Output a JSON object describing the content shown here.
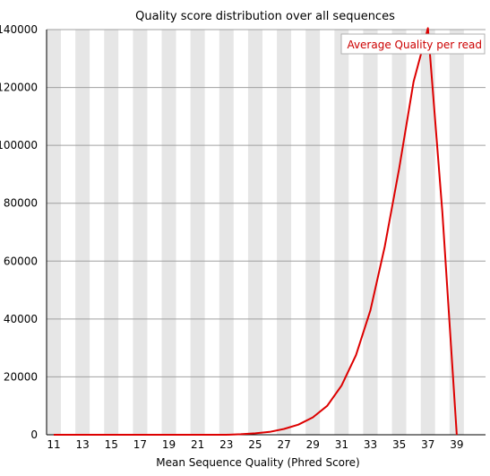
{
  "chart_data": {
    "type": "line",
    "title": "Quality score distribution over all sequences",
    "xlabel": "Mean Sequence Quality (Phred Score)",
    "ylabel": "",
    "xlim": [
      11,
      39
    ],
    "ylim": [
      0,
      140000
    ],
    "x_ticks": [
      "11",
      "13",
      "15",
      "17",
      "19",
      "21",
      "23",
      "25",
      "27",
      "29",
      "31",
      "33",
      "35",
      "37",
      "39"
    ],
    "y_ticks": [
      "0",
      "20000",
      "40000",
      "60000",
      "80000",
      "100000",
      "120000",
      "140000"
    ],
    "grid": true,
    "legend_position": "top-right",
    "series": [
      {
        "name": "Average Quality per read",
        "color": "#dd0000",
        "x": [
          11,
          12,
          13,
          14,
          15,
          16,
          17,
          18,
          19,
          20,
          21,
          22,
          23,
          24,
          25,
          26,
          27,
          28,
          29,
          30,
          31,
          32,
          33,
          34,
          35,
          36,
          37,
          38,
          39
        ],
        "values": [
          0,
          0,
          0,
          0,
          0,
          0,
          0,
          0,
          0,
          0,
          0,
          0,
          0,
          200,
          500,
          1000,
          2000,
          3500,
          6000,
          10000,
          17000,
          27500,
          43000,
          65000,
          92000,
          122000,
          140500,
          77000,
          0
        ]
      }
    ]
  }
}
